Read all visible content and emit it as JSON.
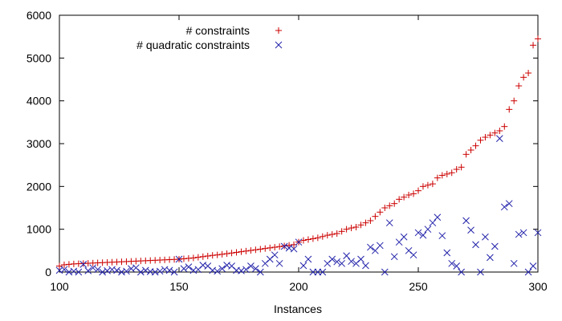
{
  "chart_data": {
    "type": "scatter",
    "title": "",
    "xlabel": "Instances",
    "ylabel": "",
    "xlim": [
      100,
      300
    ],
    "ylim": [
      0,
      6000
    ],
    "x_ticks": [
      "100",
      "150",
      "200",
      "250",
      "300"
    ],
    "y_ticks": [
      "0",
      "1000",
      "2000",
      "3000",
      "4000",
      "5000",
      "6000"
    ],
    "legend_position": "top-center",
    "series": [
      {
        "name": "# constraints",
        "marker": "plus",
        "color": "#cc0000",
        "x": [
          100,
          102,
          104,
          106,
          108,
          110,
          112,
          114,
          116,
          118,
          120,
          122,
          124,
          126,
          128,
          130,
          132,
          134,
          136,
          138,
          140,
          142,
          144,
          146,
          148,
          150,
          152,
          154,
          156,
          158,
          160,
          162,
          164,
          166,
          168,
          170,
          172,
          174,
          176,
          178,
          180,
          182,
          184,
          186,
          188,
          190,
          192,
          194,
          196,
          198,
          200,
          202,
          204,
          206,
          208,
          210,
          212,
          214,
          216,
          218,
          220,
          222,
          224,
          226,
          228,
          230,
          232,
          234,
          236,
          238,
          240,
          242,
          244,
          246,
          248,
          250,
          252,
          254,
          256,
          258,
          260,
          262,
          264,
          266,
          268,
          270,
          272,
          274,
          276,
          278,
          280,
          282,
          284,
          286,
          288,
          290,
          292,
          294,
          296,
          298,
          300
        ],
        "y": [
          140,
          170,
          180,
          190,
          195,
          200,
          205,
          210,
          215,
          220,
          225,
          230,
          235,
          240,
          245,
          250,
          255,
          260,
          265,
          270,
          275,
          280,
          285,
          290,
          295,
          300,
          310,
          320,
          330,
          345,
          360,
          375,
          390,
          400,
          415,
          430,
          445,
          460,
          475,
          490,
          505,
          520,
          535,
          550,
          565,
          580,
          595,
          610,
          625,
          640,
          700,
          740,
          760,
          780,
          800,
          830,
          860,
          880,
          900,
          950,
          1000,
          1030,
          1050,
          1100,
          1150,
          1200,
          1300,
          1400,
          1500,
          1550,
          1600,
          1700,
          1750,
          1800,
          1830,
          1900,
          2000,
          2030,
          2060,
          2200,
          2260,
          2290,
          2320,
          2400,
          2450,
          2750,
          2850,
          2950,
          3080,
          3150,
          3200,
          3250,
          3300,
          3400,
          3800,
          4000,
          4350,
          4550,
          4650,
          5300,
          5450
        ]
      },
      {
        "name": "# quadratic constraints",
        "marker": "cross",
        "color": "#2222aa",
        "x": [
          100,
          102,
          104,
          106,
          108,
          110,
          112,
          114,
          116,
          118,
          120,
          122,
          124,
          126,
          128,
          130,
          132,
          134,
          136,
          138,
          140,
          142,
          144,
          146,
          148,
          150,
          152,
          154,
          156,
          158,
          160,
          162,
          164,
          166,
          168,
          170,
          172,
          174,
          176,
          178,
          180,
          182,
          184,
          186,
          188,
          190,
          192,
          194,
          196,
          198,
          200,
          202,
          204,
          206,
          208,
          210,
          212,
          214,
          216,
          218,
          220,
          222,
          224,
          226,
          228,
          230,
          232,
          234,
          236,
          238,
          240,
          242,
          244,
          246,
          248,
          250,
          252,
          254,
          256,
          258,
          260,
          262,
          264,
          266,
          268,
          270,
          272,
          274,
          276,
          278,
          280,
          282,
          284,
          286,
          288,
          290,
          292,
          294,
          296,
          298,
          300
        ],
        "y": [
          40,
          60,
          0,
          20,
          0,
          180,
          30,
          100,
          60,
          0,
          30,
          60,
          40,
          0,
          20,
          80,
          100,
          0,
          40,
          10,
          0,
          20,
          60,
          40,
          0,
          300,
          80,
          120,
          40,
          60,
          160,
          140,
          40,
          20,
          80,
          160,
          140,
          40,
          30,
          60,
          140,
          80,
          0,
          200,
          300,
          400,
          200,
          600,
          560,
          540,
          700,
          150,
          300,
          0,
          0,
          0,
          200,
          300,
          240,
          200,
          380,
          250,
          200,
          300,
          150,
          580,
          500,
          620,
          0,
          1150,
          360,
          700,
          820,
          500,
          400,
          920,
          860,
          1000,
          1150,
          1280,
          850,
          450,
          200,
          140,
          0,
          1200,
          980,
          640,
          0,
          820,
          340,
          600,
          3120,
          1520,
          1600,
          200,
          880,
          920,
          0,
          140,
          920
        ]
      }
    ]
  }
}
